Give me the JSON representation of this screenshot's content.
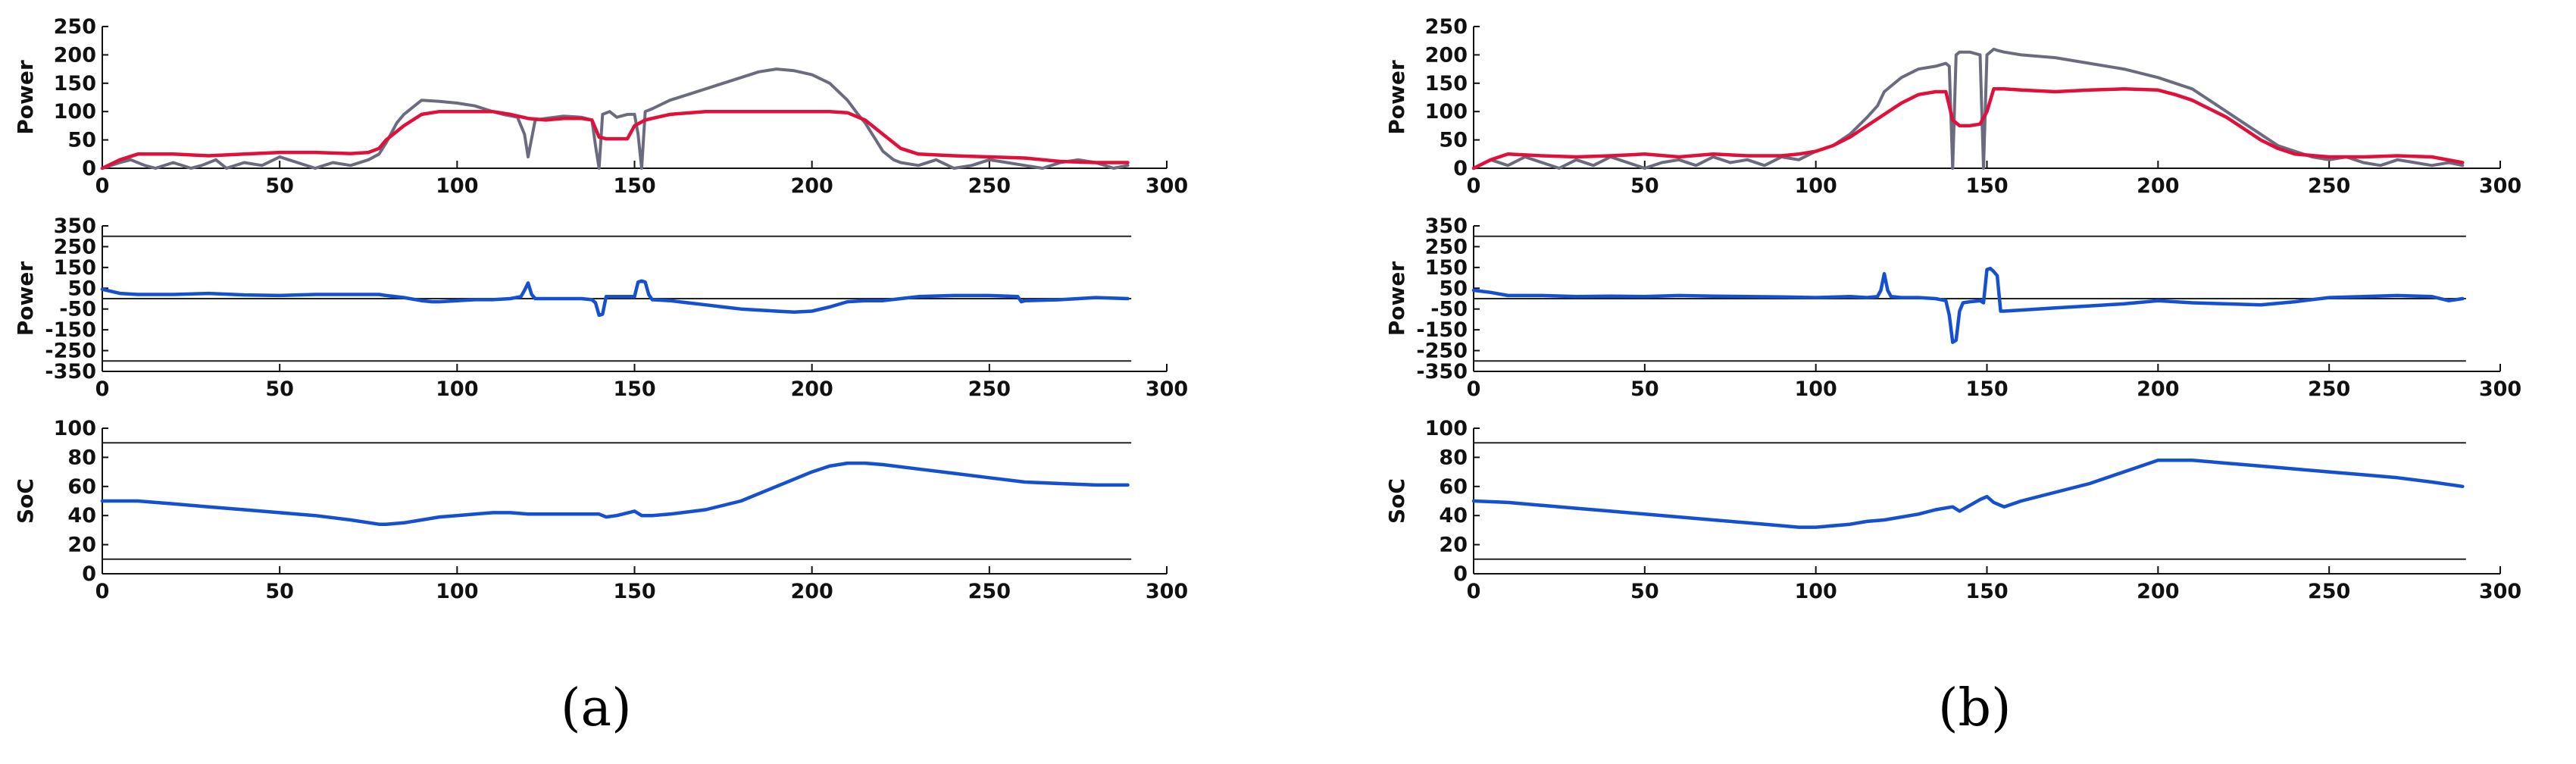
{
  "panels": [
    {
      "label": "(a)",
      "letter": "a"
    },
    {
      "label": "(b)",
      "letter": "b"
    }
  ],
  "colors": {
    "load": "#6b6b80",
    "grid": "#e0103a",
    "battery": "#1450d0",
    "ref_line": "#222222",
    "axis": "#111111"
  },
  "chart_data": [
    {
      "panel": "a",
      "subplot": "load-and-grid-power",
      "type": "line",
      "ylabel": "Power",
      "xlim": [
        0,
        300
      ],
      "ylim": [
        0,
        250
      ],
      "xticks": [
        0,
        50,
        100,
        150,
        200,
        250,
        300
      ],
      "yticks": [
        0,
        50,
        100,
        150,
        200,
        250
      ],
      "series": [
        {
          "role": "load",
          "color": "#6b6b80",
          "x": [
            0,
            5,
            8,
            12,
            15,
            20,
            25,
            28,
            32,
            35,
            40,
            45,
            50,
            55,
            60,
            65,
            70,
            75,
            78,
            80,
            83,
            85,
            88,
            90,
            95,
            100,
            105,
            110,
            113,
            117,
            119,
            120,
            122,
            125,
            130,
            135,
            138,
            139,
            140,
            141,
            143,
            145,
            148,
            150,
            151,
            152,
            153,
            155,
            160,
            165,
            170,
            175,
            180,
            185,
            190,
            195,
            200,
            205,
            210,
            213,
            215,
            218,
            220,
            223,
            225,
            230,
            235,
            240,
            245,
            250,
            255,
            260,
            265,
            270,
            275,
            280,
            285,
            289
          ],
          "y": [
            0,
            10,
            15,
            5,
            0,
            10,
            0,
            5,
            15,
            0,
            10,
            5,
            20,
            10,
            0,
            10,
            5,
            15,
            25,
            45,
            80,
            95,
            110,
            120,
            118,
            115,
            110,
            100,
            95,
            90,
            60,
            20,
            85,
            88,
            92,
            90,
            85,
            40,
            0,
            95,
            100,
            90,
            95,
            95,
            60,
            0,
            100,
            105,
            120,
            130,
            140,
            150,
            160,
            170,
            175,
            172,
            165,
            150,
            120,
            95,
            80,
            50,
            30,
            15,
            10,
            5,
            15,
            0,
            5,
            15,
            10,
            5,
            0,
            10,
            15,
            10,
            0,
            5
          ]
        },
        {
          "role": "grid",
          "color": "#e0103a",
          "x": [
            0,
            5,
            10,
            20,
            30,
            40,
            50,
            60,
            70,
            75,
            78,
            80,
            85,
            90,
            95,
            100,
            105,
            110,
            115,
            120,
            125,
            130,
            135,
            138,
            140,
            142,
            145,
            148,
            150,
            153,
            155,
            160,
            170,
            180,
            190,
            200,
            205,
            210,
            215,
            220,
            225,
            230,
            240,
            250,
            260,
            270,
            280,
            289
          ],
          "y": [
            0,
            15,
            25,
            25,
            22,
            25,
            28,
            28,
            26,
            28,
            35,
            50,
            75,
            95,
            100,
            100,
            100,
            100,
            95,
            88,
            85,
            88,
            88,
            85,
            55,
            52,
            52,
            52,
            75,
            85,
            88,
            95,
            100,
            100,
            100,
            100,
            100,
            98,
            85,
            60,
            35,
            25,
            22,
            20,
            18,
            12,
            10,
            10
          ]
        }
      ]
    },
    {
      "panel": "a",
      "subplot": "battery-power",
      "type": "line",
      "ylabel": "Power",
      "xlim": [
        0,
        300
      ],
      "ylim": [
        -350,
        350
      ],
      "xticks": [
        0,
        50,
        100,
        150,
        200,
        250,
        300
      ],
      "yticks": [
        -350,
        -250,
        -150,
        -50,
        50,
        150,
        250,
        350
      ],
      "ref_lines": [
        -300,
        0,
        300
      ],
      "series": [
        {
          "role": "battery",
          "color": "#1450d0",
          "x": [
            0,
            5,
            10,
            20,
            30,
            40,
            50,
            60,
            70,
            78,
            80,
            85,
            90,
            93,
            95,
            100,
            105,
            110,
            115,
            118,
            119,
            120,
            121,
            122,
            125,
            130,
            135,
            138,
            139,
            140,
            141,
            142,
            145,
            150,
            151,
            152,
            153,
            154,
            155,
            160,
            165,
            170,
            175,
            180,
            185,
            190,
            195,
            200,
            205,
            210,
            215,
            220,
            225,
            230,
            240,
            250,
            258,
            259,
            260,
            270,
            280,
            289
          ],
          "y": [
            45,
            25,
            20,
            20,
            25,
            18,
            15,
            20,
            20,
            20,
            15,
            5,
            -10,
            -15,
            -15,
            -10,
            -5,
            -5,
            0,
            10,
            40,
            75,
            20,
            0,
            0,
            0,
            0,
            -5,
            -20,
            -80,
            -75,
            10,
            10,
            10,
            80,
            85,
            80,
            20,
            -5,
            -10,
            -20,
            -30,
            -40,
            -50,
            -55,
            -60,
            -65,
            -60,
            -40,
            -15,
            -10,
            -10,
            0,
            10,
            15,
            15,
            10,
            -15,
            -10,
            -5,
            5,
            0
          ]
        }
      ]
    },
    {
      "panel": "a",
      "subplot": "state-of-charge",
      "type": "line",
      "ylabel": "SoC",
      "xlim": [
        0,
        300
      ],
      "ylim": [
        0,
        100
      ],
      "xticks": [
        0,
        50,
        100,
        150,
        200,
        250,
        300
      ],
      "yticks": [
        0,
        20,
        40,
        60,
        80,
        100
      ],
      "ref_lines": [
        10,
        90
      ],
      "series": [
        {
          "role": "soc",
          "color": "#1450d0",
          "x": [
            0,
            10,
            20,
            30,
            40,
            50,
            60,
            70,
            78,
            80,
            85,
            90,
            95,
            100,
            110,
            115,
            120,
            130,
            140,
            142,
            145,
            150,
            152,
            155,
            160,
            170,
            180,
            190,
            200,
            205,
            210,
            215,
            220,
            230,
            240,
            250,
            260,
            270,
            280,
            289
          ],
          "y": [
            50,
            50,
            48,
            46,
            44,
            42,
            40,
            37,
            34,
            34,
            35,
            37,
            39,
            40,
            42,
            42,
            41,
            41,
            41,
            39,
            40,
            43,
            40,
            40,
            41,
            44,
            50,
            60,
            70,
            74,
            76,
            76,
            75,
            72,
            69,
            66,
            63,
            62,
            61,
            61
          ]
        }
      ]
    },
    {
      "panel": "b",
      "subplot": "load-and-grid-power",
      "type": "line",
      "ylabel": "Power",
      "xlim": [
        0,
        300
      ],
      "ylim": [
        0,
        250
      ],
      "xticks": [
        0,
        50,
        100,
        150,
        200,
        250,
        300
      ],
      "yticks": [
        0,
        50,
        100,
        150,
        200,
        250
      ],
      "series": [
        {
          "role": "load",
          "color": "#6b6b80",
          "x": [
            0,
            5,
            10,
            15,
            20,
            25,
            30,
            35,
            40,
            45,
            50,
            55,
            60,
            65,
            70,
            75,
            80,
            85,
            90,
            95,
            100,
            105,
            110,
            115,
            118,
            120,
            122,
            125,
            130,
            135,
            138,
            139,
            140,
            141,
            142,
            145,
            148,
            149,
            150,
            151,
            152,
            153,
            155,
            160,
            170,
            180,
            190,
            200,
            205,
            210,
            215,
            220,
            225,
            230,
            235,
            240,
            245,
            250,
            255,
            260,
            265,
            270,
            275,
            280,
            285,
            289
          ],
          "y": [
            0,
            15,
            5,
            20,
            10,
            0,
            15,
            5,
            20,
            10,
            0,
            10,
            15,
            5,
            20,
            10,
            15,
            5,
            20,
            15,
            30,
            40,
            60,
            90,
            110,
            135,
            145,
            160,
            175,
            180,
            185,
            180,
            0,
            200,
            205,
            205,
            200,
            0,
            200,
            205,
            210,
            208,
            205,
            200,
            195,
            185,
            175,
            160,
            150,
            140,
            120,
            100,
            80,
            60,
            40,
            30,
            20,
            15,
            20,
            10,
            5,
            15,
            10,
            5,
            10,
            5
          ]
        },
        {
          "role": "grid",
          "color": "#e0103a",
          "x": [
            0,
            5,
            10,
            20,
            30,
            40,
            50,
            60,
            70,
            80,
            90,
            95,
            100,
            105,
            110,
            115,
            120,
            125,
            130,
            135,
            138,
            140,
            142,
            145,
            148,
            150,
            152,
            155,
            160,
            170,
            180,
            190,
            200,
            205,
            210,
            215,
            220,
            225,
            230,
            235,
            240,
            250,
            260,
            270,
            280,
            289
          ],
          "y": [
            0,
            15,
            25,
            22,
            20,
            22,
            25,
            20,
            25,
            22,
            22,
            25,
            30,
            40,
            55,
            75,
            95,
            115,
            130,
            135,
            135,
            85,
            75,
            75,
            78,
            100,
            140,
            140,
            138,
            135,
            138,
            140,
            138,
            130,
            120,
            105,
            90,
            70,
            50,
            35,
            25,
            20,
            20,
            22,
            20,
            10
          ]
        }
      ]
    },
    {
      "panel": "b",
      "subplot": "battery-power",
      "type": "line",
      "ylabel": "Power",
      "xlim": [
        0,
        300
      ],
      "ylim": [
        -350,
        350
      ],
      "xticks": [
        0,
        50,
        100,
        150,
        200,
        250,
        300
      ],
      "yticks": [
        -350,
        -250,
        -150,
        -50,
        50,
        150,
        250,
        350
      ],
      "ref_lines": [
        -300,
        0,
        300
      ],
      "series": [
        {
          "role": "battery",
          "color": "#1450d0",
          "x": [
            0,
            5,
            10,
            20,
            30,
            40,
            50,
            60,
            70,
            80,
            90,
            100,
            110,
            115,
            118,
            119,
            120,
            121,
            122,
            125,
            130,
            135,
            138,
            139,
            140,
            141,
            142,
            143,
            145,
            148,
            149,
            150,
            151,
            152,
            153,
            154,
            155,
            160,
            170,
            180,
            190,
            200,
            205,
            210,
            220,
            230,
            240,
            250,
            260,
            270,
            280,
            285,
            289
          ],
          "y": [
            40,
            30,
            15,
            15,
            10,
            12,
            10,
            15,
            12,
            10,
            8,
            5,
            10,
            5,
            10,
            40,
            120,
            40,
            10,
            5,
            5,
            0,
            -10,
            -80,
            -210,
            -200,
            -60,
            -20,
            -15,
            -10,
            -20,
            140,
            145,
            130,
            110,
            -60,
            -60,
            -55,
            -45,
            -35,
            -25,
            -10,
            -15,
            -20,
            -25,
            -30,
            -15,
            5,
            10,
            15,
            10,
            -10,
            0
          ]
        }
      ]
    },
    {
      "panel": "b",
      "subplot": "state-of-charge",
      "type": "line",
      "ylabel": "SoC",
      "xlim": [
        0,
        300
      ],
      "ylim": [
        0,
        100
      ],
      "xticks": [
        0,
        50,
        100,
        150,
        200,
        250,
        300
      ],
      "yticks": [
        0,
        20,
        40,
        60,
        80,
        100
      ],
      "ref_lines": [
        10,
        90
      ],
      "series": [
        {
          "role": "soc",
          "color": "#1450d0",
          "x": [
            0,
            10,
            20,
            30,
            40,
            50,
            60,
            70,
            80,
            90,
            95,
            100,
            110,
            115,
            120,
            130,
            135,
            140,
            142,
            145,
            148,
            150,
            152,
            155,
            160,
            170,
            180,
            190,
            200,
            210,
            220,
            230,
            240,
            250,
            260,
            270,
            280,
            289
          ],
          "y": [
            50,
            49,
            47,
            45,
            43,
            41,
            39,
            37,
            35,
            33,
            32,
            32,
            34,
            36,
            37,
            41,
            44,
            46,
            43,
            47,
            51,
            53,
            49,
            46,
            50,
            56,
            62,
            70,
            78,
            78,
            76,
            74,
            72,
            70,
            68,
            66,
            63,
            60
          ]
        }
      ]
    }
  ]
}
